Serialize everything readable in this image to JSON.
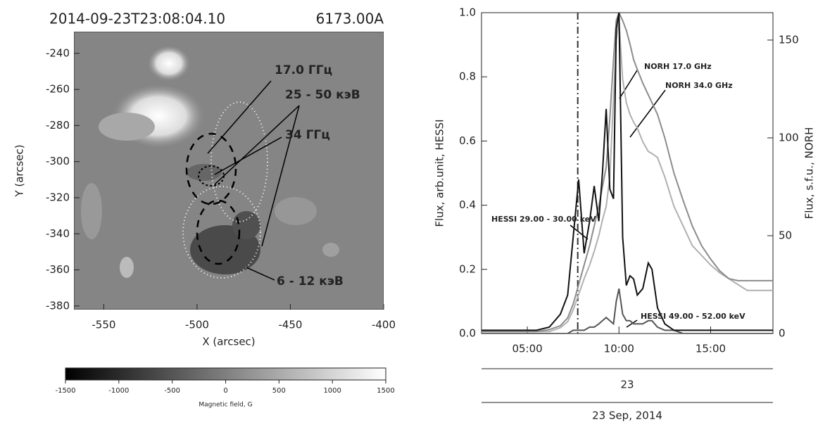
{
  "chart_data": [
    {
      "type": "image",
      "title": "2014-09-23T23:08:04.10",
      "subtitle": "6173.00A",
      "xlabel": "X (arcsec)",
      "ylabel": "Y (arcsec)",
      "xlim": [
        -566,
        -400
      ],
      "ylim": [
        -382,
        -228
      ],
      "xticks": [
        -550,
        -500,
        -450,
        -400
      ],
      "yticks": [
        -240,
        -260,
        -280,
        -300,
        -320,
        -340,
        -360,
        -380
      ],
      "annotations": [
        "17.0 ГГц",
        "25 - 50 кэВ",
        "34 ГГц",
        "6 - 12 кэВ"
      ],
      "colorbar": {
        "clim": [
          -1500,
          1500
        ],
        "ticks": [
          -1500,
          -1000,
          -500,
          0,
          500,
          1000,
          1500
        ],
        "label": "Magnetic field, G"
      }
    },
    {
      "type": "line",
      "ylabel": "Flux, arb.unit, HESSI",
      "y2label": "Flux, s.f.u., NORH",
      "xlabel_day": "23",
      "xlabel_date": "23 Sep, 2014",
      "xlim": [
        2.5,
        18.4
      ],
      "ylim": [
        0,
        1
      ],
      "y2lim": [
        0,
        164
      ],
      "xticks": [
        {
          "value": 5,
          "label": "05:00"
        },
        {
          "value": 10,
          "label": "10:00"
        },
        {
          "value": 15,
          "label": "15:00"
        }
      ],
      "yticks": [
        {
          "value": 0,
          "label": "0.0"
        },
        0.2,
        0.4,
        0.6,
        0.8,
        {
          "value": 1,
          "label": "1.0"
        }
      ],
      "y2ticks": [
        0,
        50,
        100,
        150
      ],
      "vline_x": 7.75,
      "x": [
        2.5,
        4,
        5.5,
        6.2,
        6.8,
        7.2,
        7.5,
        7.8,
        8.1,
        8.4,
        8.65,
        8.9,
        9.1,
        9.3,
        9.5,
        9.7,
        9.85,
        10.0,
        10.2,
        10.4,
        10.6,
        10.8,
        11.0,
        11.3,
        11.6,
        11.8,
        12.1,
        12.5,
        13,
        13.5,
        14,
        14.5,
        15,
        15.5,
        16,
        16.5,
        17,
        17.5,
        18,
        18.4
      ],
      "series": [
        {
          "name": "HESSI 29.00 - 30.00 keV",
          "color": "#111111",
          "values": [
            0.01,
            0.01,
            0.01,
            0.02,
            0.06,
            0.12,
            0.3,
            0.48,
            0.25,
            0.35,
            0.46,
            0.35,
            0.5,
            0.7,
            0.45,
            0.42,
            0.95,
            1.0,
            0.3,
            0.15,
            0.18,
            0.17,
            0.12,
            0.14,
            0.22,
            0.2,
            0.08,
            0.03,
            0.01,
            0.01,
            0.01,
            0.01,
            0.01,
            0.01,
            0.01,
            0.01,
            0.01,
            0.01,
            0.01,
            0.01
          ]
        },
        {
          "name": "HESSI 49.00 - 52.00 keV",
          "color": "#555555",
          "values": [
            0,
            0,
            0,
            0,
            0,
            0,
            0.01,
            0.01,
            0.01,
            0.02,
            0.02,
            0.03,
            0.04,
            0.05,
            0.04,
            0.03,
            0.1,
            0.14,
            0.06,
            0.04,
            0.04,
            0.03,
            0.03,
            0.03,
            0.04,
            0.04,
            0.02,
            0.01,
            0.01,
            0,
            0,
            0,
            0,
            0,
            0,
            0,
            0,
            0,
            0,
            0
          ]
        },
        {
          "name": "NORH 17.0 GHz",
          "color": "#8c8c8c",
          "axis": "y2",
          "values": [
            1,
            1,
            1,
            2,
            4,
            8,
            15,
            25,
            35,
            45,
            55,
            65,
            75,
            85,
            110,
            140,
            160,
            164,
            160,
            155,
            148,
            140,
            135,
            128,
            122,
            118,
            112,
            100,
            82,
            68,
            55,
            45,
            38,
            32,
            28,
            27,
            27,
            27,
            27,
            27
          ]
        },
        {
          "name": "NORH 34.0 GHz",
          "color": "#b0b0b0",
          "axis": "y2",
          "values": [
            1,
            1,
            1,
            1,
            3,
            6,
            12,
            20,
            28,
            35,
            42,
            50,
            58,
            65,
            80,
            120,
            150,
            160,
            130,
            118,
            112,
            108,
            105,
            98,
            93,
            92,
            90,
            80,
            65,
            55,
            45,
            40,
            35,
            31,
            28,
            25,
            22,
            22,
            22,
            22
          ]
        }
      ]
    }
  ]
}
